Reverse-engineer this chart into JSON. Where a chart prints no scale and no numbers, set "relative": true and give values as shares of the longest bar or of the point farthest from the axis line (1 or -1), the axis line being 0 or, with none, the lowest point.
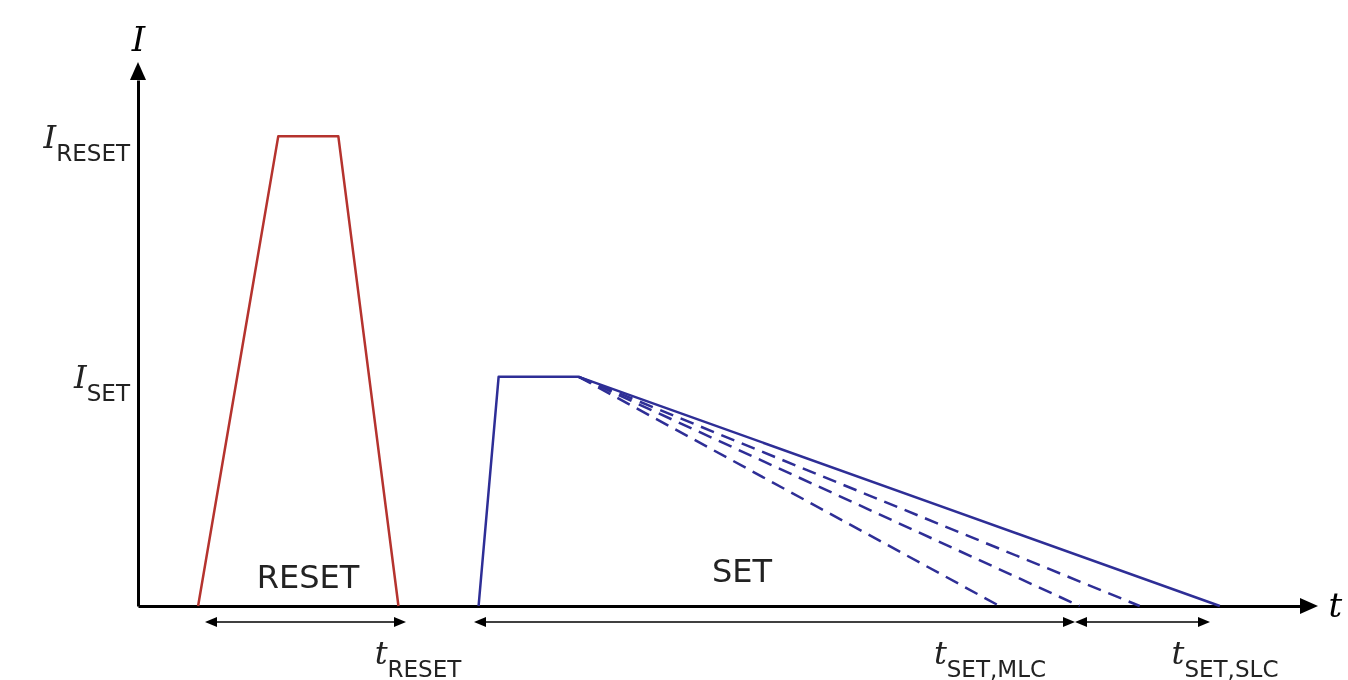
{
  "chart_data": {
    "type": "line",
    "relative": true,
    "xlabel": "t",
    "ylabel": "I",
    "categories": [
      null,
      null,
      null,
      null,
      null,
      null,
      null,
      null,
      null,
      null,
      null,
      null,
      null,
      null,
      null,
      null,
      null,
      null,
      null,
      null,
      null,
      null,
      null,
      null,
      null,
      null,
      null,
      null,
      null,
      null,
      null,
      null,
      null,
      null,
      null,
      null,
      null,
      null,
      null,
      null,
      null,
      null,
      null,
      null,
      null,
      null,
      null,
      null,
      null,
      null,
      null,
      null,
      null,
      null,
      null,
      null,
      null,
      null,
      null
    ],
    "series": [
      {
        "color": "#b5332e",
        "values": [
          null,
          null,
          null,
          0,
          null,
          null,
          null,
          1,
          null,
          null,
          1,
          null,
          null,
          0,
          null,
          null,
          null,
          null,
          null,
          null,
          null,
          null,
          null,
          null,
          null,
          null,
          null,
          null,
          null,
          null,
          null,
          null,
          null,
          null,
          null,
          null,
          null,
          null,
          null,
          null,
          null,
          null,
          null,
          null,
          null,
          null,
          null,
          null,
          null,
          null,
          null,
          null,
          null,
          null,
          null,
          null,
          null,
          null,
          null
        ]
      },
      {
        "color": "#2e2e96",
        "values": [
          null,
          null,
          null,
          null,
          null,
          null,
          null,
          null,
          null,
          null,
          null,
          null,
          null,
          null,
          null,
          null,
          null,
          0,
          0.488,
          null,
          null,
          null,
          0.488,
          null,
          null,
          null,
          null,
          null,
          null,
          null,
          null,
          null,
          null,
          null,
          null,
          null,
          null,
          null,
          null,
          null,
          null,
          null,
          null,
          null,
          null,
          null,
          null,
          null,
          null,
          null,
          null,
          null,
          null,
          null,
          0,
          null,
          null,
          null,
          null
        ]
      },
      {
        "color": "#2e2e96",
        "line_style": "dashed",
        "values": [
          null,
          null,
          null,
          null,
          null,
          null,
          null,
          null,
          null,
          null,
          null,
          null,
          null,
          null,
          null,
          null,
          null,
          null,
          null,
          null,
          null,
          null,
          0.488,
          null,
          null,
          null,
          null,
          null,
          null,
          null,
          null,
          null,
          null,
          null,
          null,
          null,
          null,
          null,
          null,
          null,
          null,
          null,
          null,
          0,
          null,
          null,
          null,
          null,
          null,
          null,
          null,
          null,
          null,
          null,
          null,
          null,
          null,
          null,
          null
        ]
      },
      {
        "color": "#2e2e96",
        "line_style": "dashed",
        "values": [
          null,
          null,
          null,
          null,
          null,
          null,
          null,
          null,
          null,
          null,
          null,
          null,
          null,
          null,
          null,
          null,
          null,
          null,
          null,
          null,
          null,
          null,
          0.488,
          null,
          null,
          null,
          null,
          null,
          null,
          null,
          null,
          null,
          null,
          null,
          null,
          null,
          null,
          null,
          null,
          null,
          null,
          null,
          null,
          null,
          null,
          null,
          null,
          0,
          null,
          null,
          null,
          null,
          null,
          null,
          null,
          null,
          null,
          null,
          null
        ]
      },
      {
        "color": "#2e2e96",
        "line_style": "dashed",
        "values": [
          null,
          null,
          null,
          null,
          null,
          null,
          null,
          null,
          null,
          null,
          null,
          null,
          null,
          null,
          null,
          null,
          null,
          null,
          null,
          null,
          null,
          null,
          0.488,
          null,
          null,
          null,
          null,
          null,
          null,
          null,
          null,
          null,
          null,
          null,
          null,
          null,
          null,
          null,
          null,
          null,
          null,
          null,
          null,
          null,
          null,
          null,
          null,
          null,
          null,
          null,
          0,
          null,
          null,
          null,
          null,
          null,
          null,
          null,
          null
        ]
      }
    ],
    "annotations": [
      "I$_{RESET}$",
      "I$_{SET}$",
      "RESET",
      "SET",
      "t$_{RESET}$",
      "t$_{SET,MLC}$",
      "t$_{SET,SLC}$"
    ]
  }
}
